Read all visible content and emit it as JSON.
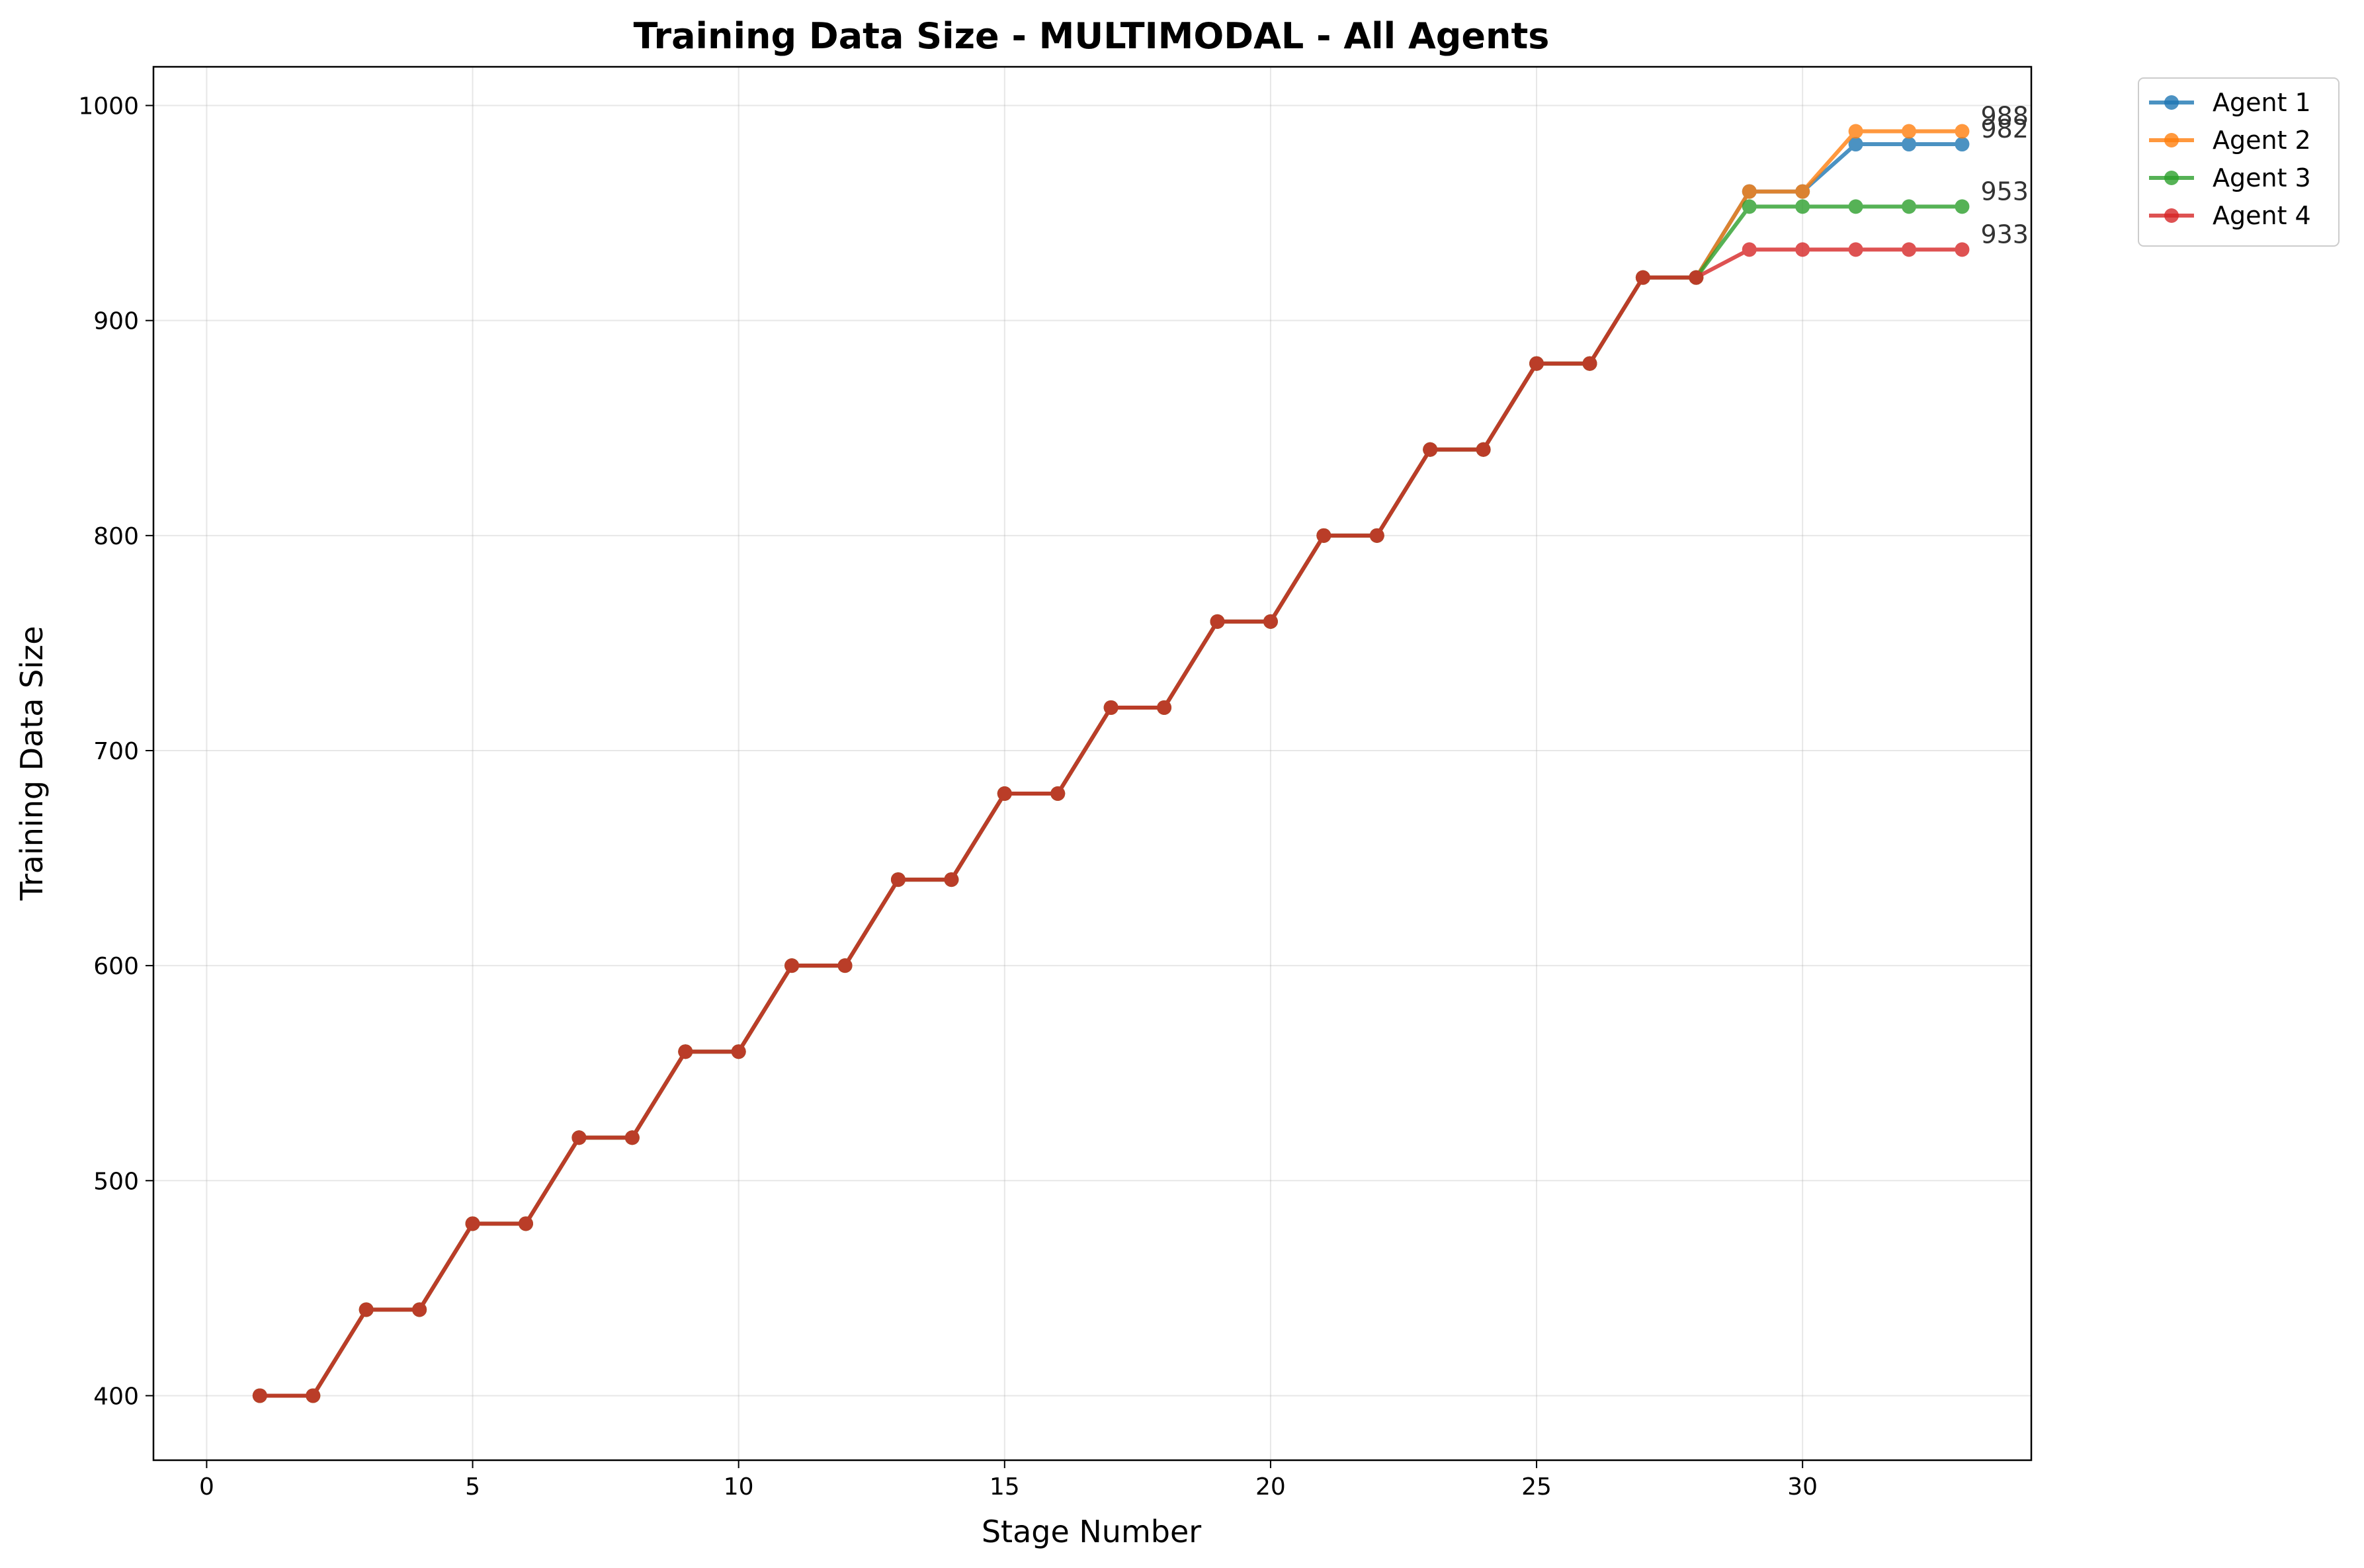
{
  "chart_data": {
    "type": "line",
    "title": "Training Data Size - MULTIMODAL - All Agents",
    "xlabel": "Stage Number",
    "ylabel": "Training Data Size",
    "xlim": [
      -1,
      34.3
    ],
    "ylim": [
      370,
      1018
    ],
    "xticks": [
      0,
      5,
      10,
      15,
      20,
      25,
      30
    ],
    "yticks": [
      400,
      500,
      600,
      700,
      800,
      900,
      1000
    ],
    "grid": true,
    "legend_position": "outside-top-right",
    "x": [
      1,
      2,
      3,
      4,
      5,
      6,
      7,
      8,
      9,
      10,
      11,
      12,
      13,
      14,
      15,
      16,
      17,
      18,
      19,
      20,
      21,
      22,
      23,
      24,
      25,
      26,
      27,
      28,
      29,
      30,
      31,
      32,
      33
    ],
    "series": [
      {
        "name": "Agent 1",
        "color": "#1f77b4",
        "end_label": "982",
        "values": [
          400,
          400,
          440,
          440,
          480,
          480,
          520,
          520,
          560,
          560,
          600,
          600,
          640,
          640,
          680,
          680,
          720,
          720,
          760,
          760,
          800,
          800,
          840,
          840,
          880,
          880,
          920,
          920,
          960,
          960,
          982,
          982,
          982
        ]
      },
      {
        "name": "Agent 2",
        "color": "#ff7f0e",
        "end_label": "988",
        "values": [
          400,
          400,
          440,
          440,
          480,
          480,
          520,
          520,
          560,
          560,
          600,
          600,
          640,
          640,
          680,
          680,
          720,
          720,
          760,
          760,
          800,
          800,
          840,
          840,
          880,
          880,
          920,
          920,
          960,
          960,
          988,
          988,
          988
        ]
      },
      {
        "name": "Agent 3",
        "color": "#2ca02c",
        "end_label": "953",
        "values": [
          400,
          400,
          440,
          440,
          480,
          480,
          520,
          520,
          560,
          560,
          600,
          600,
          640,
          640,
          680,
          680,
          720,
          720,
          760,
          760,
          800,
          800,
          840,
          840,
          880,
          880,
          920,
          920,
          953,
          953,
          953,
          953,
          953
        ]
      },
      {
        "name": "Agent 4",
        "color": "#d62728",
        "end_label": "933",
        "values": [
          400,
          400,
          440,
          440,
          480,
          480,
          520,
          520,
          560,
          560,
          600,
          600,
          640,
          640,
          680,
          680,
          720,
          720,
          760,
          760,
          800,
          800,
          840,
          840,
          880,
          880,
          920,
          920,
          933,
          933,
          933,
          933,
          933
        ]
      }
    ]
  }
}
